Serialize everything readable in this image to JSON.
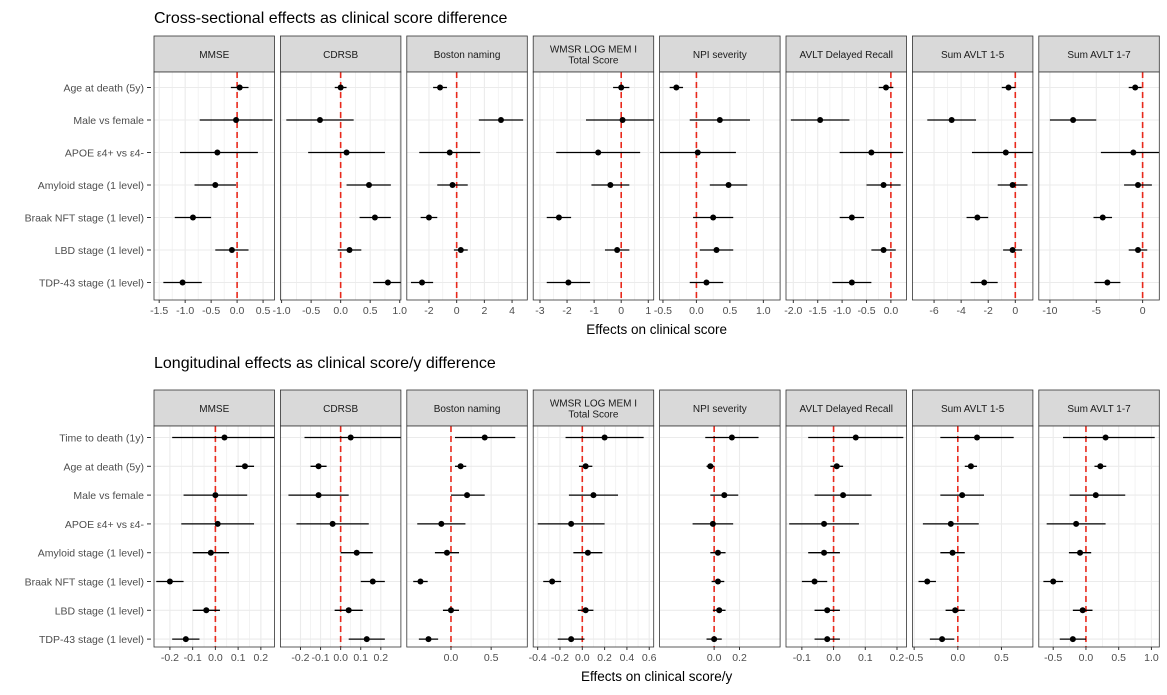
{
  "figure": {
    "colors": {
      "panel_header_bg": "#d9d9d9",
      "grid": "#ebebeb",
      "zero_line": "#e8291c",
      "point": "#000000",
      "axis_text": "#4d4d4d"
    }
  },
  "chart_data": [
    {
      "type": "forest",
      "title": "Cross-sectional effects as clinical score difference",
      "xlabel": "Effects on clinical score",
      "rows": [
        "Age at death (5y)",
        "Male vs female",
        "APOE ε4+ vs ε4-",
        "Amyloid stage (1 level)",
        "Braak NFT stage (1 level)",
        "LBD stage (1 level)",
        "TDP-43 stage (1 level)"
      ],
      "reference_line": 0,
      "grid": true,
      "panels": [
        {
          "name": "MMSE",
          "xlim": [
            -1.6,
            0.72
          ],
          "ticks": [
            -1.5,
            -1.0,
            -0.5,
            0.0,
            0.5
          ],
          "tick_labels": [
            "-1.5",
            "-1.0",
            "-0.5",
            "0.0",
            "0.5"
          ],
          "points": [
            [
              0.05,
              -0.12,
              0.22
            ],
            [
              -0.02,
              -0.72,
              0.68
            ],
            [
              -0.38,
              -1.1,
              0.4
            ],
            [
              -0.42,
              -0.82,
              -0.02
            ],
            [
              -0.85,
              -1.2,
              -0.5
            ],
            [
              -0.1,
              -0.42,
              0.22
            ],
            [
              -1.05,
              -1.42,
              -0.68
            ]
          ]
        },
        {
          "name": "CDRSB",
          "xlim": [
            -1.02,
            1.02
          ],
          "ticks": [
            -1.0,
            -0.5,
            0.0,
            0.5,
            1.0
          ],
          "tick_labels": [
            "-1.0",
            "-0.5",
            "0.0",
            "0.5",
            "1.0"
          ],
          "points": [
            [
              0.0,
              -0.1,
              0.1
            ],
            [
              -0.35,
              -0.92,
              0.22
            ],
            [
              0.1,
              -0.55,
              0.75
            ],
            [
              0.48,
              0.1,
              0.85
            ],
            [
              0.58,
              0.32,
              0.85
            ],
            [
              0.15,
              -0.05,
              0.35
            ],
            [
              0.8,
              0.55,
              1.05
            ]
          ]
        },
        {
          "name": "Boston naming",
          "xlim": [
            -3.6,
            5.1
          ],
          "ticks": [
            -2,
            0,
            2,
            4
          ],
          "tick_labels": [
            "-2",
            "0",
            "2",
            "4"
          ],
          "points": [
            [
              -1.2,
              -1.7,
              -0.7
            ],
            [
              3.2,
              1.6,
              4.8
            ],
            [
              -0.5,
              -2.7,
              1.7
            ],
            [
              -0.3,
              -1.4,
              0.8
            ],
            [
              -2.0,
              -2.6,
              -1.4
            ],
            [
              0.3,
              -0.2,
              0.8
            ],
            [
              -2.5,
              -3.3,
              -1.7
            ]
          ]
        },
        {
          "name": "WMSR LOG MEM I\nTotal Score",
          "xlim": [
            -3.25,
            1.2
          ],
          "ticks": [
            -3,
            -2,
            -1,
            0,
            1
          ],
          "tick_labels": [
            "-3",
            "-2",
            "-1",
            "0",
            "1"
          ],
          "points": [
            [
              0.0,
              -0.3,
              0.3
            ],
            [
              0.05,
              -1.3,
              1.4
            ],
            [
              -0.85,
              -2.4,
              0.7
            ],
            [
              -0.4,
              -1.1,
              0.3
            ],
            [
              -2.3,
              -2.75,
              -1.85
            ],
            [
              -0.15,
              -0.6,
              0.3
            ],
            [
              -1.95,
              -2.75,
              -1.15
            ]
          ]
        },
        {
          "name": "NPI severity",
          "xlim": [
            -0.55,
            1.25
          ],
          "ticks": [
            -0.5,
            0.0,
            0.5,
            1.0
          ],
          "tick_labels": [
            "-0.5",
            "0.0",
            "0.5",
            "1.0"
          ],
          "points": [
            [
              -0.3,
              -0.4,
              -0.2
            ],
            [
              0.35,
              -0.1,
              0.8
            ],
            [
              0.02,
              -0.55,
              0.59
            ],
            [
              0.48,
              0.2,
              0.76
            ],
            [
              0.25,
              -0.05,
              0.55
            ],
            [
              0.3,
              0.05,
              0.55
            ],
            [
              0.15,
              -0.1,
              0.4
            ]
          ]
        },
        {
          "name": "AVLT Delayed Recall",
          "xlim": [
            -2.15,
            0.32
          ],
          "ticks": [
            -2.0,
            -1.5,
            -1.0,
            -0.5,
            0.0
          ],
          "tick_labels": [
            "-2.0",
            "-1.5",
            "-1.0",
            "-0.5",
            "0.0"
          ],
          "points": [
            [
              -0.1,
              -0.25,
              0.05
            ],
            [
              -1.45,
              -2.05,
              -0.85
            ],
            [
              -0.4,
              -1.05,
              0.25
            ],
            [
              -0.15,
              -0.5,
              0.2
            ],
            [
              -0.8,
              -1.05,
              -0.55
            ],
            [
              -0.15,
              -0.4,
              0.1
            ],
            [
              -0.8,
              -1.2,
              -0.4
            ]
          ]
        },
        {
          "name": "Sum AVLT 1-5",
          "xlim": [
            -7.6,
            1.3
          ],
          "ticks": [
            -6,
            -4,
            -2,
            0
          ],
          "tick_labels": [
            "-6",
            "-4",
            "-2",
            "0"
          ],
          "points": [
            [
              -0.5,
              -1.0,
              0.0
            ],
            [
              -4.7,
              -6.5,
              -2.9
            ],
            [
              -0.7,
              -3.2,
              1.8
            ],
            [
              -0.2,
              -1.3,
              0.9
            ],
            [
              -2.8,
              -3.6,
              -2.0
            ],
            [
              -0.2,
              -0.9,
              0.5
            ],
            [
              -2.3,
              -3.3,
              -1.3
            ]
          ]
        },
        {
          "name": "Sum AVLT 1-7",
          "xlim": [
            -11.2,
            1.8
          ],
          "ticks": [
            -10,
            -5,
            0
          ],
          "tick_labels": [
            "-10",
            "-5",
            "0"
          ],
          "points": [
            [
              -0.8,
              -1.5,
              -0.1
            ],
            [
              -7.5,
              -10.0,
              -5.0
            ],
            [
              -1.0,
              -4.5,
              2.5
            ],
            [
              -0.5,
              -2.0,
              1.0
            ],
            [
              -4.3,
              -5.3,
              -3.3
            ],
            [
              -0.5,
              -1.5,
              0.5
            ],
            [
              -3.8,
              -5.2,
              -2.4
            ]
          ]
        }
      ]
    },
    {
      "type": "forest",
      "title": "Longitudinal effects as clinical score/y difference",
      "xlabel": "Effects on clinical score/y",
      "rows": [
        "Time to death (1y)",
        "Age at death (5y)",
        "Male vs female",
        "APOE ε4+ vs ε4-",
        "Amyloid stage (1 level)",
        "Braak NFT stage (1 level)",
        "LBD stage (1 level)",
        "TDP-43 stage (1 level)"
      ],
      "reference_line": 0,
      "grid": true,
      "panels": [
        {
          "name": "MMSE",
          "xlim": [
            -0.27,
            0.26
          ],
          "ticks": [
            -0.2,
            -0.1,
            0.0,
            0.1,
            0.2
          ],
          "tick_labels": [
            "-0.2",
            "-0.1",
            "0.0",
            "0.1",
            "0.2"
          ],
          "points": [
            [
              0.04,
              -0.19,
              0.27
            ],
            [
              0.13,
              0.09,
              0.17
            ],
            [
              0.0,
              -0.14,
              0.14
            ],
            [
              0.01,
              -0.15,
              0.17
            ],
            [
              -0.02,
              -0.1,
              0.06
            ],
            [
              -0.2,
              -0.26,
              -0.14
            ],
            [
              -0.04,
              -0.1,
              0.02
            ],
            [
              -0.13,
              -0.19,
              -0.07
            ]
          ]
        },
        {
          "name": "CDRSB",
          "xlim": [
            -0.3,
            0.3
          ],
          "ticks": [
            -0.2,
            -0.1,
            0.0,
            0.1,
            0.2
          ],
          "tick_labels": [
            "-0.2",
            "-0.1",
            "0.0",
            "0.1",
            "0.2"
          ],
          "points": [
            [
              0.05,
              -0.18,
              0.3
            ],
            [
              -0.11,
              -0.15,
              -0.07
            ],
            [
              -0.11,
              -0.26,
              0.04
            ],
            [
              -0.04,
              -0.22,
              0.14
            ],
            [
              0.08,
              0.0,
              0.16
            ],
            [
              0.16,
              0.1,
              0.22
            ],
            [
              0.04,
              -0.03,
              0.11
            ],
            [
              0.13,
              0.04,
              0.22
            ]
          ]
        },
        {
          "name": "Boston naming",
          "xlim": [
            -0.55,
            0.95
          ],
          "ticks": [
            0.0,
            0.5
          ],
          "tick_labels": [
            "0.0",
            "0.5"
          ],
          "points": [
            [
              0.42,
              0.05,
              0.8
            ],
            [
              0.12,
              0.05,
              0.19
            ],
            [
              0.2,
              0.0,
              0.42
            ],
            [
              -0.12,
              -0.42,
              0.18
            ],
            [
              -0.05,
              -0.2,
              0.1
            ],
            [
              -0.38,
              -0.47,
              -0.29
            ],
            [
              0.0,
              -0.1,
              0.1
            ],
            [
              -0.28,
              -0.4,
              -0.16
            ]
          ]
        },
        {
          "name": "WMSR LOG MEM I\nTotal Score",
          "xlim": [
            -0.44,
            0.64
          ],
          "ticks": [
            -0.4,
            -0.2,
            0.0,
            0.2,
            0.4,
            0.6
          ],
          "tick_labels": [
            "-0.4",
            "-0.2",
            "0.0",
            "0.2",
            "0.4",
            "0.6"
          ],
          "points": [
            [
              0.2,
              -0.15,
              0.55
            ],
            [
              0.03,
              -0.03,
              0.09
            ],
            [
              0.1,
              -0.12,
              0.32
            ],
            [
              -0.1,
              -0.4,
              0.2
            ],
            [
              0.05,
              -0.08,
              0.18
            ],
            [
              -0.27,
              -0.35,
              -0.19
            ],
            [
              0.03,
              -0.04,
              0.1
            ],
            [
              -0.1,
              -0.22,
              0.02
            ]
          ]
        },
        {
          "name": "NPI severity",
          "xlim": [
            -0.43,
            0.52
          ],
          "ticks": [
            0.0,
            0.2
          ],
          "tick_labels": [
            "0.0",
            "0.2"
          ],
          "points": [
            [
              0.14,
              -0.07,
              0.35
            ],
            [
              -0.03,
              -0.06,
              0.0
            ],
            [
              0.08,
              -0.03,
              0.19
            ],
            [
              -0.01,
              -0.17,
              0.15
            ],
            [
              0.03,
              -0.03,
              0.09
            ],
            [
              0.03,
              -0.02,
              0.08
            ],
            [
              0.04,
              -0.01,
              0.09
            ],
            [
              0.0,
              -0.06,
              0.06
            ]
          ]
        },
        {
          "name": "AVLT Delayed Recall",
          "xlim": [
            -0.15,
            0.23
          ],
          "ticks": [
            -0.1,
            0.0,
            0.1,
            0.2
          ],
          "tick_labels": [
            "-0.1",
            "0.0",
            "0.1",
            "0.2"
          ],
          "points": [
            [
              0.07,
              -0.08,
              0.22
            ],
            [
              0.01,
              -0.01,
              0.03
            ],
            [
              0.03,
              -0.06,
              0.12
            ],
            [
              -0.03,
              -0.14,
              0.08
            ],
            [
              -0.03,
              -0.08,
              0.02
            ],
            [
              -0.06,
              -0.1,
              -0.02
            ],
            [
              -0.02,
              -0.06,
              0.02
            ],
            [
              -0.02,
              -0.06,
              0.02
            ]
          ]
        },
        {
          "name": "Sum AVLT 1-5",
          "xlim": [
            -0.52,
            0.86
          ],
          "ticks": [
            -0.5,
            0.0,
            0.5
          ],
          "tick_labels": [
            "-0.5",
            "0.0",
            "0.5"
          ],
          "points": [
            [
              0.22,
              -0.2,
              0.64
            ],
            [
              0.15,
              0.08,
              0.22
            ],
            [
              0.05,
              -0.2,
              0.3
            ],
            [
              -0.08,
              -0.4,
              0.24
            ],
            [
              -0.06,
              -0.2,
              0.08
            ],
            [
              -0.35,
              -0.45,
              -0.25
            ],
            [
              -0.03,
              -0.14,
              0.08
            ],
            [
              -0.18,
              -0.32,
              -0.04
            ]
          ]
        },
        {
          "name": "Sum AVLT 1-7",
          "xlim": [
            -0.72,
            1.12
          ],
          "ticks": [
            -0.5,
            0.0,
            0.5,
            1.0
          ],
          "tick_labels": [
            "-0.5",
            "0.0",
            "0.5",
            "1.0"
          ],
          "points": [
            [
              0.3,
              -0.35,
              1.05
            ],
            [
              0.22,
              0.13,
              0.31
            ],
            [
              0.15,
              -0.25,
              0.6
            ],
            [
              -0.15,
              -0.6,
              0.3
            ],
            [
              -0.09,
              -0.26,
              0.08
            ],
            [
              -0.5,
              -0.65,
              -0.35
            ],
            [
              -0.05,
              -0.2,
              0.1
            ],
            [
              -0.2,
              -0.4,
              0.0
            ]
          ]
        }
      ]
    }
  ]
}
